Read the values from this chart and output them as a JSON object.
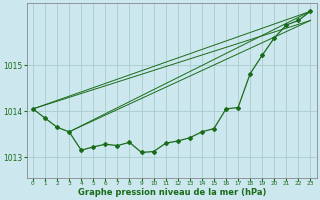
{
  "xlabel": "Graphe pression niveau de la mer (hPa)",
  "background_color": "#cce8ee",
  "grid_color": "#aacccc",
  "line_color": "#1a6b1a",
  "text_color": "#1a6b1a",
  "xlim": [
    -0.5,
    23.5
  ],
  "ylim": [
    1012.55,
    1016.35
  ],
  "yticks": [
    1013,
    1014,
    1015
  ],
  "xticks": [
    0,
    1,
    2,
    3,
    4,
    5,
    6,
    7,
    8,
    9,
    10,
    11,
    12,
    13,
    14,
    15,
    16,
    17,
    18,
    19,
    20,
    21,
    22,
    23
  ],
  "main_x": [
    0,
    1,
    2,
    3,
    4,
    5,
    6,
    7,
    8,
    9,
    10,
    11,
    12,
    13,
    14,
    15,
    16,
    17,
    18,
    19,
    20,
    21,
    22,
    23
  ],
  "main_y": [
    1014.05,
    1013.85,
    1013.65,
    1013.55,
    1013.15,
    1013.22,
    1013.28,
    1013.25,
    1013.32,
    1013.1,
    1013.12,
    1013.3,
    1013.35,
    1013.42,
    1013.55,
    1013.62,
    1014.05,
    1014.08,
    1014.82,
    1015.22,
    1015.6,
    1015.88,
    1015.98,
    1016.18
  ],
  "straight_lines": [
    {
      "x": [
        0,
        23
      ],
      "y": [
        1014.05,
        1016.18
      ]
    },
    {
      "x": [
        0,
        23
      ],
      "y": [
        1014.05,
        1015.98
      ]
    },
    {
      "x": [
        3,
        23
      ],
      "y": [
        1013.55,
        1016.18
      ]
    },
    {
      "x": [
        3,
        23
      ],
      "y": [
        1013.55,
        1015.98
      ]
    }
  ]
}
